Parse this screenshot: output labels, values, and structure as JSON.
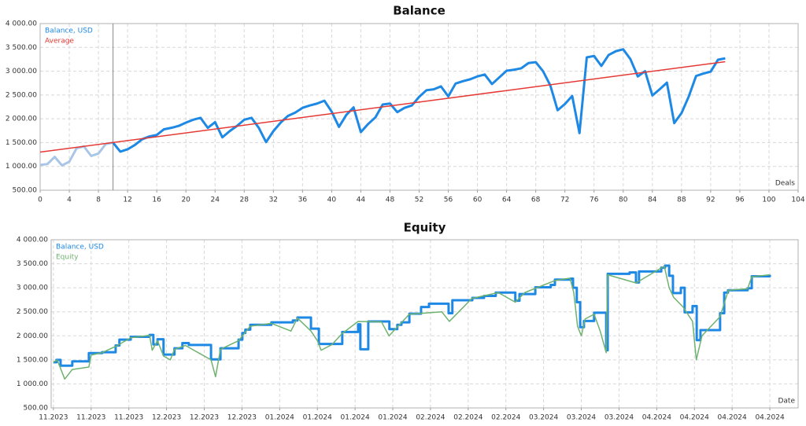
{
  "chart_data": [
    {
      "type": "line",
      "title": "Balance",
      "x_label": "Deals",
      "xlim": [
        0,
        104
      ],
      "xticks": [
        0,
        4,
        8,
        12,
        16,
        20,
        24,
        28,
        32,
        36,
        40,
        44,
        48,
        52,
        56,
        60,
        64,
        68,
        72,
        76,
        80,
        84,
        88,
        92,
        96,
        100,
        104
      ],
      "ylim": [
        500,
        4000
      ],
      "yticks": [
        {
          "value": 500,
          "label": "500.00"
        },
        {
          "value": 1000,
          "label": "1 000.00"
        },
        {
          "value": 1500,
          "label": "1 500.00"
        },
        {
          "value": 2000,
          "label": "2 000.00"
        },
        {
          "value": 2500,
          "label": "2 500.00"
        },
        {
          "value": 3000,
          "label": "3 000.00"
        },
        {
          "value": 3500,
          "label": "3 500.00"
        },
        {
          "value": 4000,
          "label": "4 000.00"
        }
      ],
      "grid": true,
      "legend": "top-left",
      "vline": 10,
      "faded_color": "#a9c6e6",
      "series": [
        {
          "name": "Balance, USD",
          "color": "#1e88e5",
          "x": [
            0,
            1,
            2,
            3,
            4,
            5,
            6,
            7,
            8,
            9,
            10,
            11,
            12,
            13,
            14,
            15,
            16,
            17,
            18,
            19,
            20,
            21,
            22,
            23,
            24,
            25,
            26,
            27,
            28,
            29,
            30,
            31,
            32,
            33,
            34,
            35,
            36,
            37,
            38,
            39,
            40,
            41,
            42,
            43,
            44,
            45,
            46,
            47,
            48,
            49,
            50,
            51,
            52,
            53,
            54,
            55,
            56,
            57,
            58,
            59,
            60,
            61,
            62,
            63,
            64,
            65,
            66,
            67,
            68,
            69,
            70,
            71,
            72,
            73,
            74,
            75,
            76,
            77,
            78,
            79,
            80,
            81,
            82,
            83,
            84,
            85,
            86,
            87,
            88,
            89,
            90,
            91,
            92,
            93,
            94
          ],
          "values": [
            1030,
            1050,
            1200,
            1020,
            1100,
            1380,
            1420,
            1220,
            1270,
            1470,
            1500,
            1310,
            1360,
            1450,
            1570,
            1630,
            1660,
            1780,
            1810,
            1850,
            1920,
            1980,
            2020,
            1810,
            1930,
            1610,
            1740,
            1850,
            1980,
            2020,
            1810,
            1510,
            1740,
            1920,
            2060,
            2130,
            2230,
            2280,
            2320,
            2380,
            2150,
            1830,
            2080,
            2240,
            1720,
            1890,
            2030,
            2300,
            2320,
            2140,
            2230,
            2280,
            2460,
            2600,
            2620,
            2680,
            2470,
            2740,
            2790,
            2830,
            2890,
            2930,
            2730,
            2870,
            3010,
            3030,
            3060,
            3170,
            3190,
            3000,
            2700,
            2180,
            2310,
            2480,
            1700,
            3290,
            3320,
            3110,
            3340,
            3420,
            3460,
            3250,
            2890,
            3000,
            2490,
            2620,
            2760,
            1910,
            2120,
            2470,
            2900,
            2950,
            2990,
            3240,
            3270
          ]
        },
        {
          "name": "Average",
          "color": "#e53935",
          "x": [
            0,
            94
          ],
          "values": [
            1300,
            3200
          ]
        }
      ]
    },
    {
      "type": "line",
      "title": "Equity",
      "x_label": "Date",
      "xlim": [
        -0.06,
        19.75
      ],
      "xticks": [
        {
          "value": 0,
          "label": "11.2023"
        },
        {
          "value": 1,
          "label": "11.2023"
        },
        {
          "value": 2,
          "label": "11.2023"
        },
        {
          "value": 3,
          "label": "12.2023"
        },
        {
          "value": 4,
          "label": "12.2023"
        },
        {
          "value": 5,
          "label": "12.2023"
        },
        {
          "value": 6,
          "label": "01.2024"
        },
        {
          "value": 7,
          "label": "01.2024"
        },
        {
          "value": 8,
          "label": "01.2024"
        },
        {
          "value": 9,
          "label": "01.2024"
        },
        {
          "value": 10,
          "label": "02.2024"
        },
        {
          "value": 11,
          "label": "02.2024"
        },
        {
          "value": 12,
          "label": "02.2024"
        },
        {
          "value": 13,
          "label": "03.2024"
        },
        {
          "value": 14,
          "label": "03.2024"
        },
        {
          "value": 15,
          "label": "03.2024"
        },
        {
          "value": 16,
          "label": "04.2024"
        },
        {
          "value": 17,
          "label": "04.2024"
        },
        {
          "value": 18,
          "label": "04.2024"
        },
        {
          "value": 19,
          "label": "04.2024"
        }
      ],
      "ylim": [
        500,
        4000
      ],
      "yticks": [
        {
          "value": 500,
          "label": "500.00"
        },
        {
          "value": 1000,
          "label": "1 000.00"
        },
        {
          "value": 1500,
          "label": "1 500.00"
        },
        {
          "value": 2000,
          "label": "2 000.00"
        },
        {
          "value": 2500,
          "label": "2 500.00"
        },
        {
          "value": 3000,
          "label": "3 000.00"
        },
        {
          "value": 3500,
          "label": "3 500.00"
        },
        {
          "value": 4000,
          "label": "4 000.00"
        }
      ],
      "grid": true,
      "legend": "top-left",
      "series": [
        {
          "name": "Balance, USD",
          "color": "#1e88e5",
          "step": true,
          "x": [
            0,
            0.08,
            0.19,
            0.5,
            0.94,
            1.29,
            1.65,
            1.75,
            2.05,
            2.55,
            2.65,
            2.76,
            2.92,
            3.21,
            3.42,
            3.59,
            4.18,
            4.43,
            4.91,
            5.01,
            5.09,
            5.22,
            5.78,
            6.35,
            6.47,
            6.83,
            7.04,
            7.39,
            7.66,
            8.08,
            8.14,
            8.35,
            8.91,
            9.12,
            9.23,
            9.44,
            9.75,
            9.96,
            10.48,
            10.58,
            11.11,
            11.42,
            11.73,
            12.25,
            12.36,
            12.78,
            13.19,
            13.3,
            13.72,
            13.78,
            13.88,
            13.97,
            14.07,
            14.34,
            14.66,
            14.7,
            15.28,
            15.45,
            15.53,
            16.12,
            16.22,
            16.33,
            16.43,
            16.64,
            16.74,
            16.95,
            17.06,
            17.16,
            17.68,
            17.79,
            17.89,
            18.41,
            18.52,
            19
          ],
          "values": [
            1450,
            1500,
            1380,
            1470,
            1640,
            1660,
            1800,
            1920,
            1980,
            2020,
            1820,
            1930,
            1610,
            1740,
            1850,
            1810,
            1510,
            1740,
            1920,
            2060,
            2130,
            2230,
            2280,
            2320,
            2380,
            2150,
            1830,
            1830,
            2080,
            2240,
            1720,
            2300,
            2140,
            2230,
            2280,
            2460,
            2600,
            2670,
            2470,
            2740,
            2790,
            2830,
            2900,
            2730,
            2870,
            3010,
            3060,
            3170,
            3190,
            3000,
            2700,
            2180,
            2310,
            2480,
            1700,
            3290,
            3320,
            3110,
            3340,
            3420,
            3460,
            3250,
            2890,
            3000,
            2490,
            2620,
            1910,
            2120,
            2470,
            2900,
            2950,
            2990,
            3240,
            3270
          ]
        },
        {
          "name": "Equity",
          "color": "#6fb26f",
          "x": [
            0,
            0.1,
            0.3,
            0.5,
            0.94,
            1.0,
            1.29,
            1.65,
            2.05,
            2.55,
            2.62,
            2.76,
            2.92,
            3.1,
            3.21,
            3.5,
            4.18,
            4.3,
            4.43,
            4.91,
            5.22,
            5.78,
            6.3,
            6.47,
            6.83,
            7.0,
            7.1,
            7.39,
            7.66,
            8.08,
            8.7,
            8.9,
            9.44,
            10.3,
            10.5,
            11.1,
            11.8,
            12.25,
            12.5,
            13.3,
            13.7,
            13.8,
            13.9,
            14.0,
            14.1,
            14.34,
            14.5,
            14.66,
            14.7,
            15.45,
            16.2,
            16.33,
            16.45,
            16.7,
            16.95,
            17.05,
            17.2,
            17.68,
            17.9,
            18.41,
            18.52,
            19
          ],
          "values": [
            1450,
            1500,
            1100,
            1300,
            1350,
            1600,
            1650,
            1780,
            1960,
            2010,
            1700,
            1900,
            1580,
            1500,
            1720,
            1800,
            1500,
            1150,
            1720,
            1900,
            2200,
            2260,
            2100,
            2370,
            2100,
            1900,
            1700,
            1820,
            2050,
            2300,
            2290,
            2000,
            2450,
            2500,
            2300,
            2780,
            2900,
            2700,
            2900,
            3150,
            3200,
            2900,
            2200,
            2000,
            2350,
            2450,
            2100,
            1650,
            3270,
            3100,
            3450,
            3000,
            2800,
            2600,
            2300,
            1500,
            2000,
            2400,
            2950,
            2980,
            3230,
            3270
          ]
        }
      ]
    }
  ]
}
